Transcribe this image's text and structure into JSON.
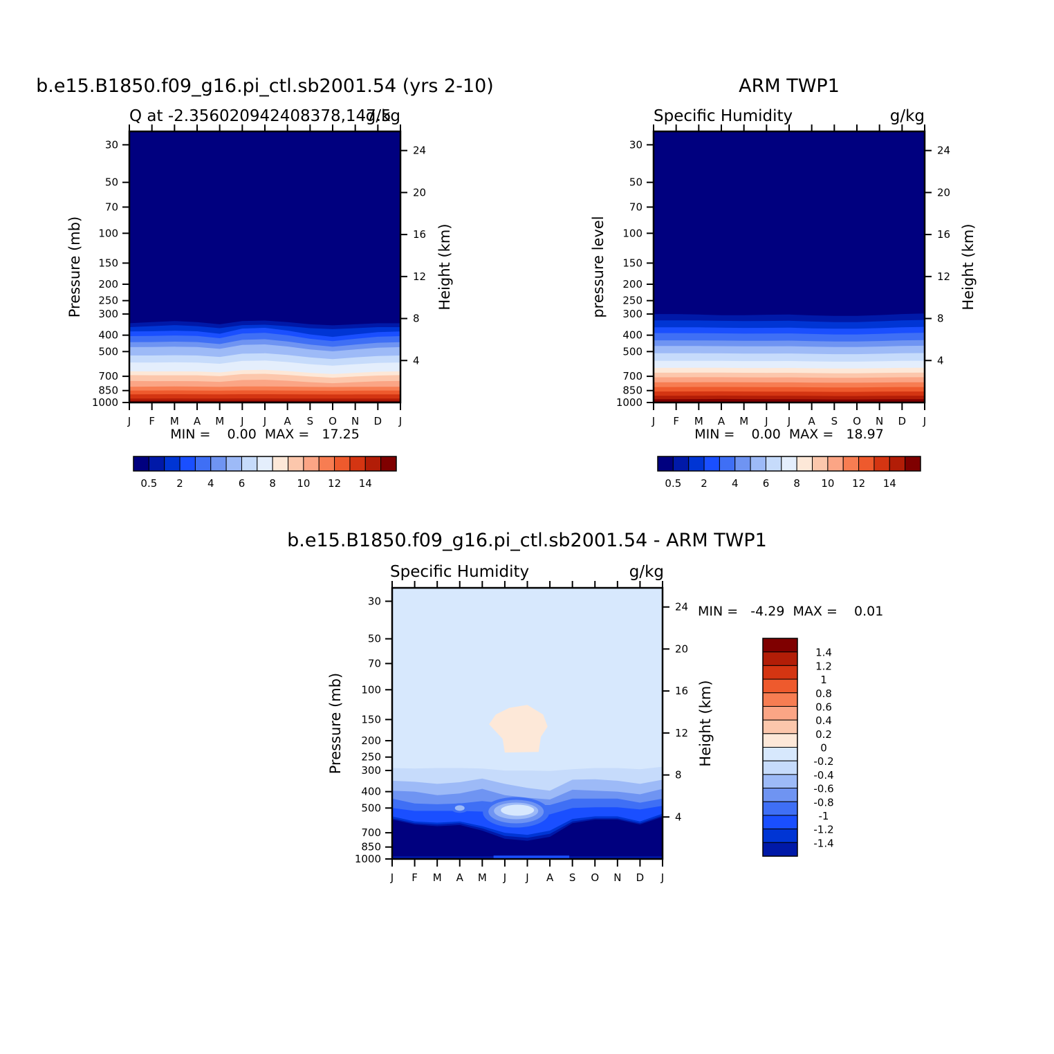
{
  "colors": {
    "q_levels": [
      "#00007f",
      "#0019a8",
      "#0035d4",
      "#1a4fff",
      "#3f6ff5",
      "#6f94f2",
      "#9dbaf7",
      "#c6dbfb",
      "#e4eefc",
      "#fde8d8",
      "#fcc7ac",
      "#fba585",
      "#f77d52",
      "#ee5a2d",
      "#d43512",
      "#b21d07",
      "#7f0000"
    ],
    "diff_levels": [
      "#00007f",
      "#0019a8",
      "#0035d4",
      "#1a4fff",
      "#3f6ff5",
      "#6f94f2",
      "#9dbaf7",
      "#c6dbfb",
      "#d7e8fd",
      "#fde8d8",
      "#fcc7ac",
      "#fba585",
      "#f77d52",
      "#ee5a2d",
      "#d43512",
      "#b21d07",
      "#7f0000"
    ]
  },
  "panel_model": {
    "title": "b.e15.B1850.f09_g16.pi_ctl.sb2001.54 (yrs 2-10)",
    "left_subtitle": "Q at -2.356020942408378,147.5",
    "right_subtitle": "g/kg",
    "ylabel": "Pressure (mb)",
    "ylabel2": "Height (km)",
    "minmax": "MIN =    0.00  MAX =   17.25"
  },
  "panel_obs": {
    "title": "ARM TWP1",
    "left_subtitle": "Specific Humidity",
    "right_subtitle": "g/kg",
    "ylabel": "pressure level",
    "ylabel2": "Height (km)",
    "minmax": "MIN =    0.00  MAX =   18.97"
  },
  "panel_diff": {
    "title": "b.e15.B1850.f09_g16.pi_ctl.sb2001.54 - ARM TWP1",
    "left_subtitle": "Specific Humidity",
    "right_subtitle": "g/kg",
    "ylabel": "Pressure (mb)",
    "ylabel2": "Height (km)",
    "minmax": "MIN =   -4.29  MAX =    0.01"
  },
  "axes": {
    "months": [
      "J",
      "F",
      "M",
      "A",
      "M",
      "J",
      "J",
      "A",
      "S",
      "O",
      "N",
      "D",
      "J"
    ],
    "pressure_ticks": [
      "30",
      "50",
      "70",
      "100",
      "150",
      "200",
      "250",
      "300",
      "400",
      "500",
      "700",
      "850",
      "1000"
    ],
    "height_ticks": [
      "24",
      "20",
      "16",
      "12",
      "8",
      "4"
    ]
  },
  "colorbar_q": {
    "labels": [
      "0.5",
      "2",
      "4",
      "6",
      "8",
      "10",
      "12",
      "14"
    ]
  },
  "colorbar_diff": {
    "labels": [
      "1.4",
      "1.2",
      "1",
      "0.8",
      "0.6",
      "0.4",
      "0.2",
      "0",
      "-0.2",
      "-0.4",
      "-0.6",
      "-0.8",
      "-1",
      "-1.2",
      "-1.4"
    ]
  },
  "chart_data": [
    {
      "type": "heatmap",
      "title": "b.e15.B1850.f09_g16.pi_ctl.sb2001.54 (yrs 2-10)",
      "subtitle": "Q at -2.356020942408378,147.5",
      "units": "g/kg",
      "xlabel": "",
      "ylabel": "Pressure (mb)",
      "ylabel_right": "Height (km)",
      "x": [
        "J",
        "F",
        "M",
        "A",
        "M",
        "J",
        "J",
        "A",
        "S",
        "O",
        "N",
        "D",
        "J"
      ],
      "y_pressure": [
        1000,
        850,
        700,
        500,
        400,
        300,
        250,
        200,
        150,
        100,
        70,
        50,
        30
      ],
      "y_scale": "log",
      "min": 0.0,
      "max": 17.25,
      "colorbar_levels": [
        0.5,
        1,
        2,
        3,
        4,
        5,
        6,
        7,
        8,
        9,
        10,
        11,
        12,
        13,
        14,
        15
      ],
      "q_surface_1000": [
        16.5,
        16.6,
        16.8,
        17.0,
        17.1,
        17.25,
        17.2,
        17.0,
        16.8,
        16.5,
        16.4,
        16.4,
        16.5
      ],
      "q_600hPa": [
        6.2,
        6.0,
        5.9,
        6.0,
        5.8,
        6.5,
        6.6,
        6.2,
        5.6,
        5.1,
        5.6,
        6.0,
        6.2
      ],
      "top_of_moist_layer_hPa": [
        340,
        335,
        330,
        335,
        345,
        330,
        328,
        335,
        345,
        350,
        345,
        340,
        340
      ]
    },
    {
      "type": "heatmap",
      "title": "ARM TWP1",
      "subtitle": "Specific Humidity",
      "units": "g/kg",
      "xlabel": "",
      "ylabel": "pressure level",
      "ylabel_right": "Height (km)",
      "x": [
        "J",
        "F",
        "M",
        "A",
        "M",
        "J",
        "J",
        "A",
        "S",
        "O",
        "N",
        "D",
        "J"
      ],
      "y_pressure": [
        1000,
        850,
        700,
        500,
        400,
        300,
        250,
        200,
        150,
        100,
        70,
        50,
        30
      ],
      "y_scale": "log",
      "min": 0.0,
      "max": 18.97,
      "colorbar_levels": [
        0.5,
        1,
        2,
        3,
        4,
        5,
        6,
        7,
        8,
        9,
        10,
        11,
        12,
        13,
        14,
        15
      ],
      "q_surface_1000": [
        18.4,
        18.5,
        18.7,
        18.9,
        18.97,
        18.8,
        18.6,
        18.5,
        18.4,
        18.5,
        18.6,
        18.5,
        18.4
      ],
      "q_600hPa": [
        7.6,
        7.6,
        7.7,
        7.8,
        7.7,
        7.6,
        7.6,
        7.5,
        7.4,
        7.4,
        7.5,
        7.6,
        7.6
      ],
      "top_of_moist_layer_hPa": [
        300,
        300,
        302,
        305,
        305,
        303,
        302,
        304,
        305,
        305,
        303,
        300,
        298
      ]
    },
    {
      "type": "heatmap",
      "title": "b.e15.B1850.f09_g16.pi_ctl.sb2001.54 - ARM TWP1",
      "subtitle": "Specific Humidity",
      "units": "g/kg",
      "xlabel": "",
      "ylabel": "Pressure (mb)",
      "ylabel_right": "Height (km)",
      "x": [
        "J",
        "F",
        "M",
        "A",
        "M",
        "J",
        "J",
        "A",
        "S",
        "O",
        "N",
        "D",
        "J"
      ],
      "y_pressure": [
        1000,
        850,
        700,
        500,
        400,
        300,
        250,
        200,
        150,
        100,
        70,
        50,
        30
      ],
      "y_scale": "log",
      "min": -4.29,
      "max": 0.01,
      "colorbar_levels": [
        -1.4,
        -1.2,
        -1,
        -0.8,
        -0.6,
        -0.4,
        -0.2,
        0,
        0.2,
        0.4,
        0.6,
        0.8,
        1,
        1.2,
        1.4
      ],
      "upper_troposphere_above_300hPa": "-0.2 to 0",
      "positive_region": {
        "months": [
          "M",
          "J",
          "J"
        ],
        "pressure_hPa": [
          150,
          230
        ],
        "value_range": "0 to 0.2"
      },
      "mid_troposphere_400_600hPa": "-0.4 to -1.4",
      "lower_troposphere_600_1000hPa": "below -1.4"
    }
  ]
}
